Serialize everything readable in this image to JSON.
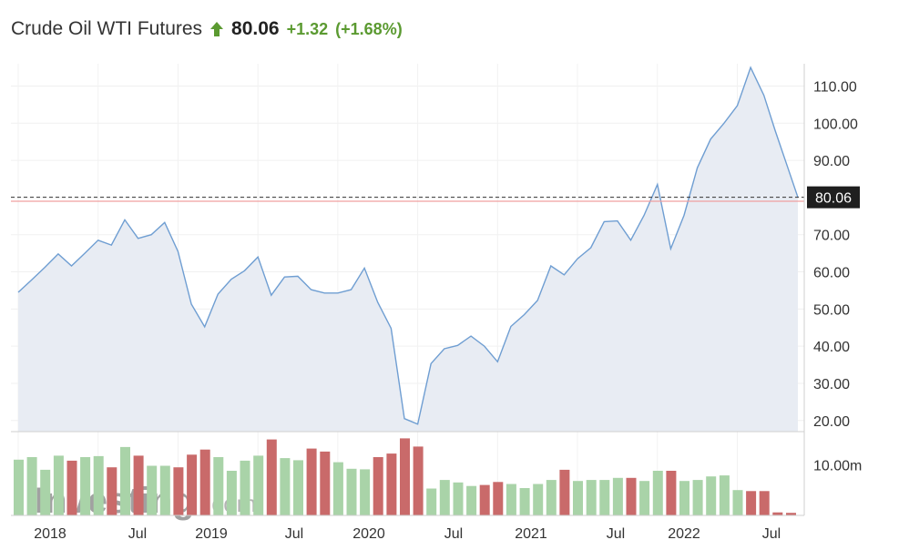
{
  "header": {
    "title": "Crude Oil WTI Futures",
    "price": "80.06",
    "change": "+1.32",
    "change_pct": "(+1.68%)",
    "up_color": "#5b9a31"
  },
  "watermark": {
    "brand": "Investing",
    "suffix": ".com"
  },
  "chart_data": [
    {
      "type": "area",
      "name": "price",
      "x": [
        "2018-01",
        "2018-02",
        "2018-03",
        "2018-04",
        "2018-05",
        "2018-06",
        "2018-07",
        "2018-08",
        "2018-09",
        "2018-10",
        "2018-11",
        "2018-12",
        "2019-01",
        "2019-02",
        "2019-03",
        "2019-04",
        "2019-05",
        "2019-06",
        "2019-07",
        "2019-08",
        "2019-09",
        "2019-10",
        "2019-11",
        "2019-12",
        "2020-01",
        "2020-02",
        "2020-03",
        "2020-04",
        "2020-05",
        "2020-06",
        "2020-07",
        "2020-08",
        "2020-09",
        "2020-10",
        "2020-11",
        "2020-12",
        "2021-01",
        "2021-02",
        "2021-03",
        "2021-04",
        "2021-05",
        "2021-06",
        "2021-07",
        "2021-08",
        "2021-09",
        "2021-10",
        "2021-11",
        "2021-12",
        "2022-01",
        "2022-02",
        "2022-03",
        "2022-04",
        "2022-05",
        "2022-06",
        "2022-07",
        "2022-08",
        "2022-09"
      ],
      "values": [
        54.5,
        57.8,
        61.2,
        64.8,
        61.6,
        65.0,
        68.5,
        67.2,
        74.0,
        69.0,
        70.0,
        73.3,
        65.5,
        51.3,
        45.2,
        54.0,
        58.0,
        60.3,
        64.0,
        53.7,
        58.6,
        58.8,
        55.2,
        54.3,
        54.3,
        55.2,
        61.0,
        51.8,
        44.8,
        20.5,
        19.0,
        35.3,
        39.3,
        40.2,
        42.7,
        40.0,
        35.8,
        45.3,
        48.5,
        52.3,
        61.6,
        59.2,
        63.5,
        66.5,
        73.5,
        73.7,
        68.5,
        75.2,
        83.5,
        66.2,
        75.2,
        88.0,
        95.7,
        100.0,
        104.7,
        115.0,
        107.5
      ],
      "extra_points": [
        98.0,
        89.0,
        80.06
      ],
      "y_ticks": [
        "110.00",
        "100.00",
        "90.00",
        "80.00",
        "70.00",
        "60.00",
        "50.00",
        "40.00",
        "30.00",
        "20.00"
      ],
      "ylim": [
        17,
        116
      ],
      "x_ticks": [
        "2018",
        "Jul",
        "2019",
        "Jul",
        "2020",
        "Jul",
        "2021",
        "Jul",
        "2022",
        "Jul"
      ],
      "last_price_label": "80.06",
      "reference_line": 79.0,
      "line_color": "#6f9ed2",
      "fill_color": "#e8ecf3",
      "ref_color": "#f0a0a0",
      "grid": true
    },
    {
      "type": "bar",
      "name": "volume",
      "unit_label": "10.00m",
      "values": [
        11.0,
        11.5,
        9.0,
        11.8,
        10.8,
        11.5,
        11.7,
        9.5,
        13.5,
        11.8,
        9.8,
        9.8,
        9.5,
        12.0,
        13.0,
        11.5,
        8.8,
        10.8,
        11.8,
        15.0,
        11.3,
        10.9,
        13.2,
        12.6,
        10.5,
        9.2,
        9.1,
        11.5,
        12.2,
        15.2,
        13.6,
        5.3,
        7.0,
        6.5,
        5.8,
        6.0,
        6.6,
        6.2,
        5.4,
        6.2,
        7.0,
        9.0,
        6.8,
        7.0,
        7.0,
        7.4,
        7.4,
        6.8,
        8.8,
        8.8,
        6.8,
        7.0,
        7.7,
        7.9,
        5.0,
        4.8,
        4.8,
        0.6,
        0.5,
        0.4
      ],
      "direction": [
        "up",
        "up",
        "up",
        "up",
        "down",
        "up",
        "up",
        "down",
        "up",
        "down",
        "up",
        "up",
        "down",
        "down",
        "down",
        "up",
        "up",
        "up",
        "up",
        "down",
        "up",
        "up",
        "down",
        "down",
        "up",
        "up",
        "up",
        "down",
        "down",
        "down",
        "down",
        "up",
        "up",
        "up",
        "up",
        "down",
        "down",
        "up",
        "up",
        "up",
        "up",
        "down",
        "up",
        "up",
        "up",
        "up",
        "down",
        "up",
        "up",
        "down",
        "up",
        "up",
        "up",
        "up",
        "up",
        "down",
        "down",
        "down",
        "down",
        "down"
      ],
      "ylim": [
        0,
        16
      ],
      "y_ticks": [
        "10.00m"
      ],
      "up_color": "#a9d3a8",
      "down_color": "#c96a6a"
    }
  ]
}
